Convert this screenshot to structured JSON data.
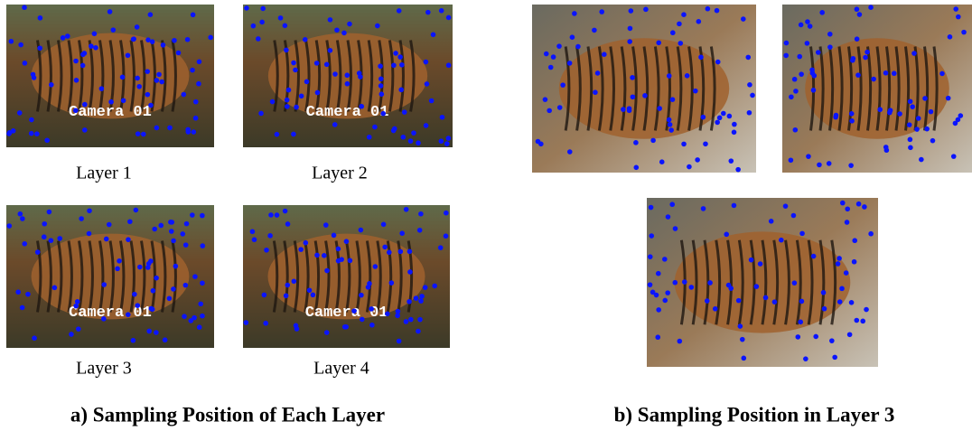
{
  "panel_a": {
    "caption": "a) Sampling Position of Each Layer",
    "images": [
      {
        "label": "Layer 1",
        "overlay": "Camera 01"
      },
      {
        "label": "Layer 2",
        "overlay": "Camera 01"
      },
      {
        "label": "Layer 3",
        "overlay": "Camera 01"
      },
      {
        "label": "Layer 4",
        "overlay": "Camera 01"
      }
    ]
  },
  "panel_b": {
    "caption": "b) Sampling Position in Layer 3"
  }
}
